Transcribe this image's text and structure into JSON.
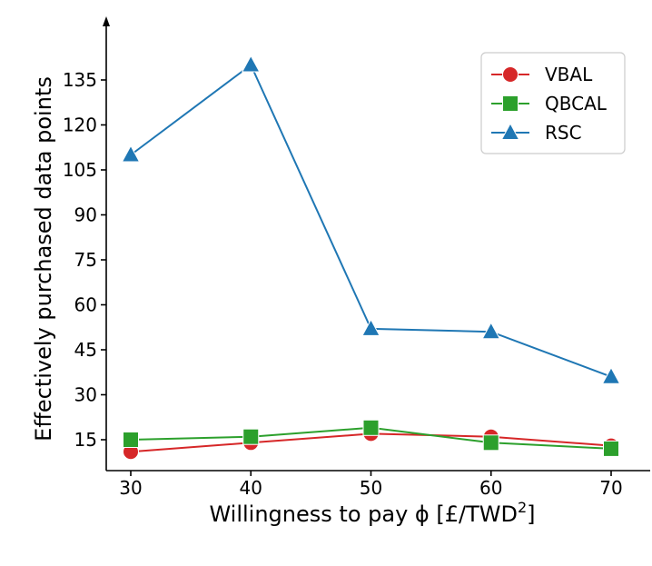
{
  "chart_data": {
    "type": "line",
    "title": "",
    "xlabel": "Willingness to pay ϕ [£/TWD²]",
    "xlabel_main": "Willingness to pay ϕ [£/TWD",
    "xlabel_sup": "2",
    "xlabel_end": "]",
    "ylabel": "Effectively purchased data points",
    "x": [
      30,
      40,
      50,
      60,
      70
    ],
    "xticks": [
      "30",
      "40",
      "50",
      "60",
      "70"
    ],
    "yticks": [
      "15",
      "30",
      "45",
      "60",
      "75",
      "90",
      "105",
      "120",
      "135"
    ],
    "xlim": [
      28.5,
      71.5
    ],
    "ylim": [
      7,
      147
    ],
    "grid": false,
    "legend_position": "top-right",
    "series": [
      {
        "name": "VBAL",
        "marker": "circle",
        "color": "#d62728",
        "values": [
          11,
          14,
          17,
          16,
          13
        ]
      },
      {
        "name": "QBCAL",
        "marker": "square",
        "color": "#2ca02c",
        "values": [
          15,
          16,
          19,
          14,
          12
        ]
      },
      {
        "name": "RSC",
        "marker": "triangle",
        "color": "#1f77b4",
        "values": [
          110,
          140,
          52,
          51,
          36
        ]
      }
    ]
  }
}
